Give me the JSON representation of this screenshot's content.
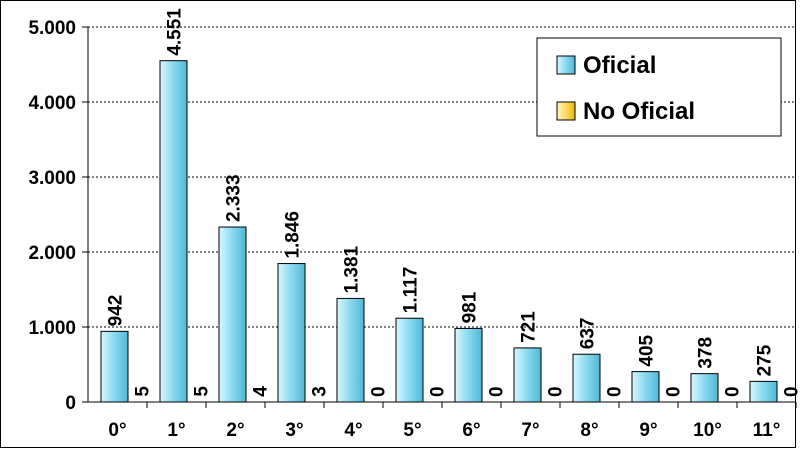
{
  "chart_data": {
    "type": "bar",
    "categories": [
      "0°",
      "1°",
      "2°",
      "3°",
      "4°",
      "5°",
      "6°",
      "7°",
      "8°",
      "9°",
      "10°",
      "11°"
    ],
    "series": [
      {
        "name": "Oficial",
        "values": [
          942,
          4551,
          2333,
          1846,
          1381,
          1117,
          981,
          721,
          637,
          405,
          378,
          275
        ],
        "labels": [
          "942",
          "4.551",
          "2.333",
          "1.846",
          "1.381",
          "1.117",
          "981",
          "721",
          "637",
          "405",
          "378",
          "275"
        ],
        "color": "#9ee3f5"
      },
      {
        "name": "No Oficial",
        "values": [
          5,
          5,
          4,
          3,
          0,
          0,
          0,
          0,
          0,
          0,
          0,
          0
        ],
        "labels": [
          "5",
          "5",
          "4",
          "3",
          "0",
          "0",
          "0",
          "0",
          "0",
          "0",
          "0",
          "0"
        ],
        "color": "#ffdd70"
      }
    ],
    "ylim": [
      0,
      5000
    ],
    "yticks": [
      0,
      1000,
      2000,
      3000,
      4000,
      5000
    ],
    "ytick_labels": [
      "0",
      "1.000",
      "2.000",
      "3.000",
      "4.000",
      "5.000"
    ],
    "grid": "horizontal dotted",
    "legend_position": "top-right"
  }
}
